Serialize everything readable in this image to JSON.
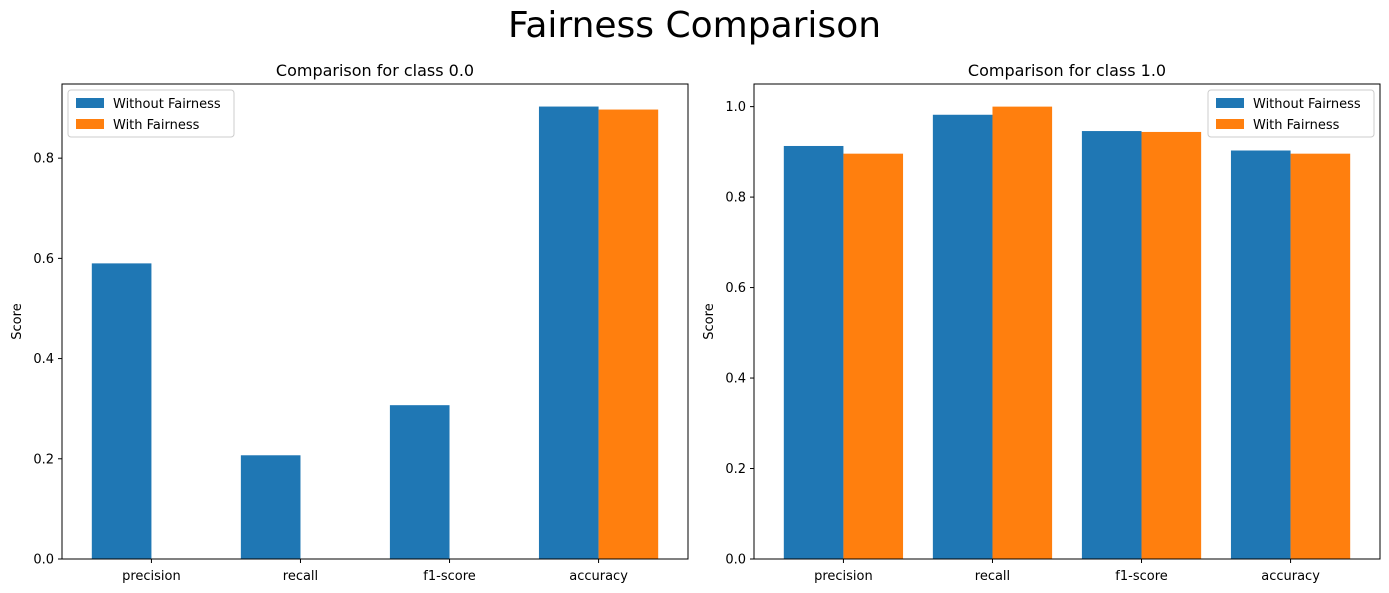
{
  "figure": {
    "title": "Fairness Comparison"
  },
  "chart_data": [
    {
      "type": "bar",
      "title": "Comparison for class 0.0",
      "xlabel": "",
      "ylabel": "Score",
      "categories": [
        "precision",
        "recall",
        "f1-score",
        "accuracy"
      ],
      "series": [
        {
          "name": "Without Fairness",
          "color": "#1f77b4",
          "values": [
            0.59,
            0.207,
            0.307,
            0.903
          ]
        },
        {
          "name": "With Fairness",
          "color": "#ff7f0e",
          "values": [
            0.0,
            0.0,
            0.0,
            0.897
          ]
        }
      ],
      "ylim": [
        0,
        0.948
      ],
      "yticks": [
        0.0,
        0.2,
        0.4,
        0.6,
        0.8
      ],
      "ytick_labels": [
        "0.0",
        "0.2",
        "0.4",
        "0.6",
        "0.8"
      ],
      "grid": false,
      "legend_position": "upper left"
    },
    {
      "type": "bar",
      "title": "Comparison for class 1.0",
      "xlabel": "",
      "ylabel": "Score",
      "categories": [
        "precision",
        "recall",
        "f1-score",
        "accuracy"
      ],
      "series": [
        {
          "name": "Without Fairness",
          "color": "#1f77b4",
          "values": [
            0.913,
            0.982,
            0.946,
            0.903
          ]
        },
        {
          "name": "With Fairness",
          "color": "#ff7f0e",
          "values": [
            0.896,
            1.0,
            0.944,
            0.896
          ]
        }
      ],
      "ylim": [
        0,
        1.05
      ],
      "yticks": [
        0.0,
        0.2,
        0.4,
        0.6,
        0.8,
        1.0
      ],
      "ytick_labels": [
        "0.0",
        "0.2",
        "0.4",
        "0.6",
        "0.8",
        "1.0"
      ],
      "grid": false,
      "legend_position": "upper right"
    }
  ]
}
